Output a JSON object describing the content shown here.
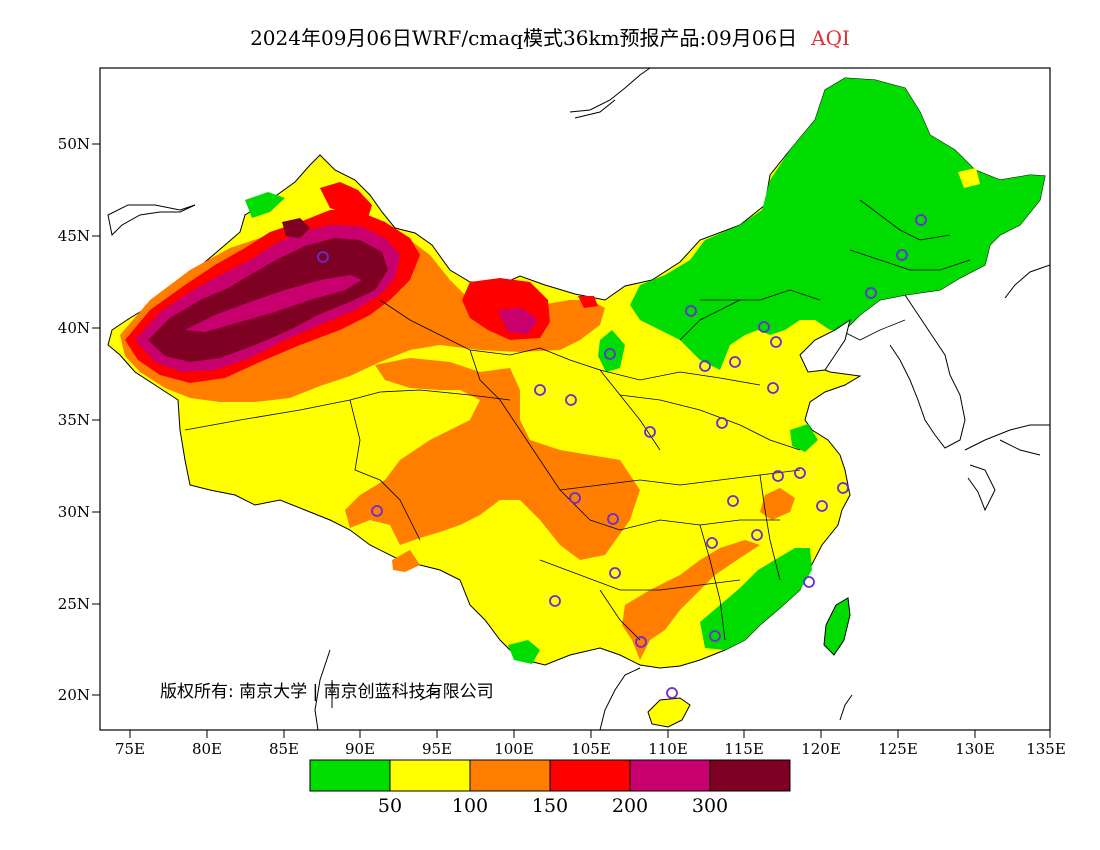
{
  "title": {
    "main": "2024年09月06日WRF/cmaq模式36km预报产品:09月06日",
    "variable": "AQI",
    "variable_color": "#e0303a"
  },
  "axes": {
    "lat_ticks": [
      "50N",
      "45N",
      "40N",
      "35N",
      "30N",
      "25N",
      "20N"
    ],
    "lon_ticks": [
      "75E",
      "80E",
      "85E",
      "90E",
      "95E",
      "100E",
      "105E",
      "110E",
      "115E",
      "120E",
      "125E",
      "130E",
      "135E"
    ]
  },
  "copyright": "版权所有: 南京大学 | 南京创蓝科技有限公司",
  "legend": {
    "colors": [
      "#00dc00",
      "#ffff00",
      "#ff7e00",
      "#ff0000",
      "#c8006e",
      "#7e0023"
    ],
    "labels": [
      "50",
      "100",
      "150",
      "200",
      "300"
    ]
  },
  "colors": {
    "good": "#00dc00",
    "moderate": "#ffff00",
    "usg": "#ff7e00",
    "unhealthy": "#ff0000",
    "very_unhealthy": "#c8006e",
    "hazardous": "#7e0023",
    "station_marker": "#6a2bd9"
  }
}
